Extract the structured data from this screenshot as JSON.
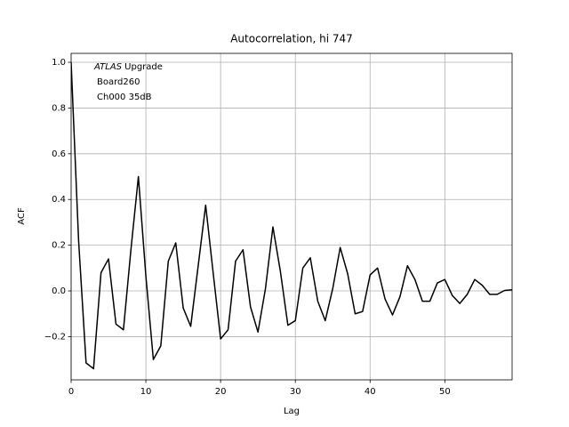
{
  "chart_data": {
    "type": "line",
    "title": "Autocorrelation, hi 747",
    "xlabel": "Lag",
    "ylabel": "ACF",
    "annotation": [
      "ATLAS",
      "Upgrade",
      "Board260",
      "Ch000 35dB"
    ],
    "x": [
      0,
      1,
      2,
      3,
      4,
      5,
      6,
      7,
      8,
      9,
      10,
      11,
      12,
      13,
      14,
      15,
      16,
      17,
      18,
      19,
      20,
      21,
      22,
      23,
      24,
      25,
      26,
      27,
      28,
      29,
      30,
      31,
      32,
      33,
      34,
      35,
      36,
      37,
      38,
      39,
      40,
      41,
      42,
      43,
      44,
      45,
      46,
      47,
      48,
      49,
      50,
      51,
      52,
      53,
      54,
      55,
      56,
      57,
      58,
      59
    ],
    "series": [
      {
        "color": "#000000",
        "values": [
          1.0,
          0.22,
          -0.315,
          -0.34,
          0.08,
          0.14,
          -0.145,
          -0.17,
          0.18,
          0.5,
          0.065,
          -0.3,
          -0.24,
          0.13,
          0.21,
          -0.075,
          -0.155,
          0.11,
          0.375,
          0.08,
          -0.21,
          -0.17,
          0.13,
          0.18,
          -0.07,
          -0.18,
          0.01,
          0.28,
          0.085,
          -0.15,
          -0.13,
          0.1,
          0.145,
          -0.045,
          -0.13,
          0.01,
          0.19,
          0.075,
          -0.1,
          -0.09,
          0.07,
          0.1,
          -0.035,
          -0.105,
          -0.025,
          0.11,
          0.05,
          -0.045,
          -0.045,
          0.035,
          0.05,
          -0.02,
          -0.055,
          -0.015,
          0.05,
          0.025,
          -0.015,
          -0.015,
          0.002,
          0.005
        ]
      }
    ],
    "xlim": [
      0,
      59
    ],
    "ylim": [
      -0.389,
      1.039
    ],
    "xticks": [
      0,
      10,
      20,
      30,
      40,
      50
    ],
    "yticks": [
      {
        "value": -0.2,
        "label": "−0.2"
      },
      {
        "value": 0,
        "label": "0.0"
      },
      0.2,
      0.4,
      0.6,
      0.8,
      {
        "value": 1,
        "label": "1.0"
      }
    ],
    "grid": true
  }
}
